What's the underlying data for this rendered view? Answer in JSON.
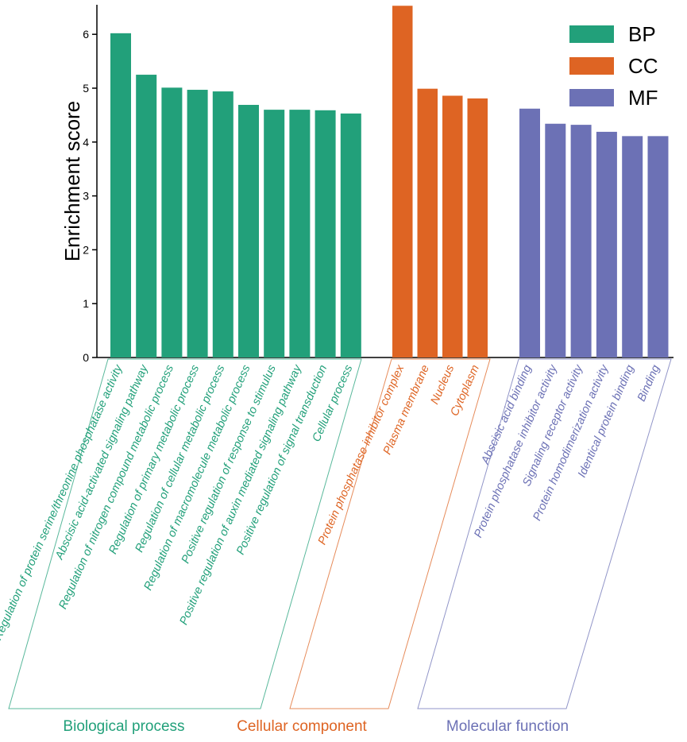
{
  "chart_data": {
    "type": "bar",
    "ylabel": "Enrichment score",
    "ylim": [
      0,
      6.5
    ],
    "yticks": [
      0,
      1,
      2,
      3,
      4,
      5,
      6
    ],
    "legend_position": "top-right",
    "series": [
      {
        "name": "BP",
        "group_label": "Biological process",
        "color": "#22a07a",
        "categories": [
          "Regulation of protein serine/threonine phosphatase activity",
          "Abscisic acid-activated signaling pathway",
          "Regulation of nitrogen compound metabolic process",
          "Regulation of primary metabolic process",
          "Regulation of cellular metabolic process",
          "Regulation of macromolecule metabolic process",
          "Positive regulation of response to stimulus",
          "Positive regulation of auxin mediated signaling pathway",
          "Positive regulation of signal transduction",
          "Cellular process"
        ],
        "values": [
          6.02,
          5.25,
          5.01,
          4.97,
          4.94,
          4.69,
          4.6,
          4.6,
          4.59,
          4.53
        ]
      },
      {
        "name": "CC",
        "group_label": "Cellular component",
        "color": "#de6423",
        "categories": [
          "Protein phosphatase inhibitor complex",
          "Plasma membrane",
          "Nucleus",
          "Cytoplasm"
        ],
        "values": [
          6.53,
          4.99,
          4.86,
          4.81
        ]
      },
      {
        "name": "MF",
        "group_label": "Molecular function",
        "color": "#6c71b5",
        "categories": [
          "Abscisic acid binding",
          "Protein phosphatase inhibitor activity",
          "Signaling receptor activity",
          "Protein homodimerization activity",
          "Identical protein binding",
          "Binding"
        ],
        "values": [
          4.62,
          4.34,
          4.32,
          4.19,
          4.11,
          4.11
        ]
      }
    ]
  }
}
